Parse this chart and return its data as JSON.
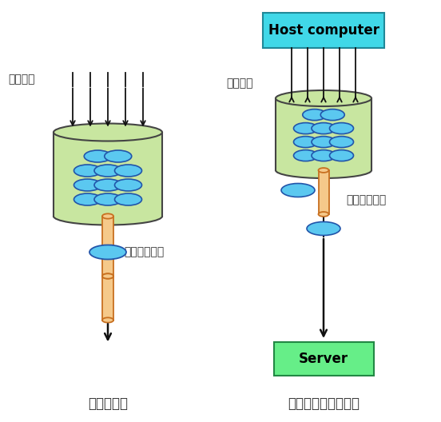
{
  "bg_color": "#ffffff",
  "title_left": "令牌桶算法",
  "title_right": "令牌桶算法应用图示",
  "host_label": "Host computer",
  "server_label": "Server",
  "label_data_req_left": "数据请求",
  "label_data_req_right": "数据请求",
  "label_served_left": "被服务的请求",
  "label_served_right": "被服务的请求",
  "bucket_fill_color": "#c8e6a0",
  "bucket_edge_color": "#444444",
  "token_color": "#5bc8f0",
  "token_edge_color": "#2255aa",
  "pipe_fill_color": "#f5c98a",
  "pipe_edge_color": "#c87020",
  "host_box_color": "#40d8e8",
  "host_box_edge": "#208898",
  "server_box_color": "#66ee88",
  "server_box_edge": "#228844",
  "arrow_color": "#111111",
  "line_color": "#111111",
  "text_color": "#333333",
  "title_fontsize": 12,
  "label_fontsize": 10
}
